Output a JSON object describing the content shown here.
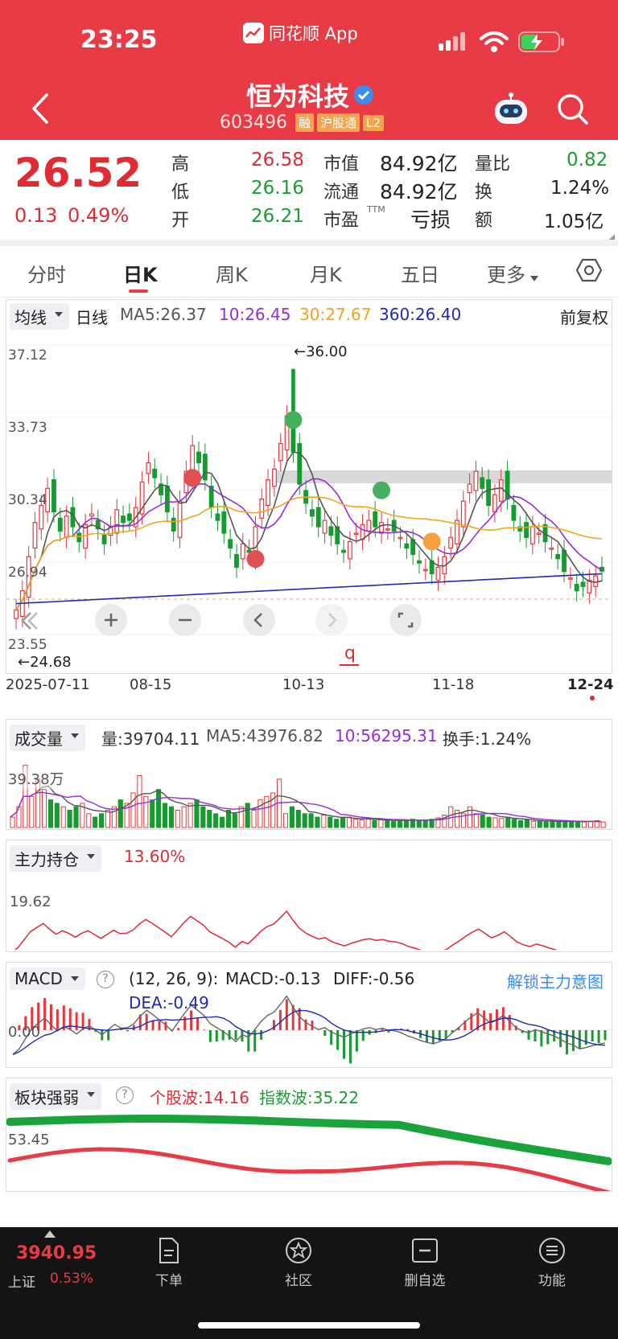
{
  "status_bar": {
    "time": "23:25",
    "app_name": "同花顺 App"
  },
  "header": {
    "title": "恒为科技",
    "code": "603496",
    "badges": [
      "融",
      "沪股通",
      "L2"
    ]
  },
  "quote": {
    "price": "26.52",
    "change": "0.13",
    "change_pct": "0.49%",
    "high_label": "高",
    "high": "26.58",
    "low_label": "低",
    "low": "26.16",
    "open_label": "开",
    "open": "26.21",
    "mktcap_label": "市值",
    "mktcap": "84.92亿",
    "float_label": "流通",
    "float": "84.92亿",
    "pe_label": "市盈",
    "pe_sup": "TTM",
    "pe": "亏损",
    "volratio_label": "量比",
    "volratio": "0.82",
    "turnover_label": "换",
    "turnover": "1.24%",
    "amount_label": "额",
    "amount": "1.05亿"
  },
  "tabs": [
    {
      "label": "分时",
      "active": false
    },
    {
      "label": "日K",
      "active": true
    },
    {
      "label": "周K",
      "active": false
    },
    {
      "label": "月K",
      "active": false
    },
    {
      "label": "五日",
      "active": false
    },
    {
      "label": "更多",
      "active": false
    }
  ],
  "kline": {
    "ma_selector": "均线",
    "period": "日线",
    "ma5": "MA5:26.37",
    "ma10": "10:26.45",
    "ma30": "30:27.67",
    "ma360": "360:26.40",
    "adjust": "前复权",
    "y_ticks": [
      "37.12",
      "33.73",
      "30.34",
      "26.94",
      "23.55"
    ],
    "x_ticks": [
      "2025-07-11",
      "08-15",
      "10-13",
      "11-18",
      "12-24"
    ],
    "high_marker": "←36.00",
    "low_marker": "←24.68",
    "marker_q": "q",
    "colors": {
      "up": "#e8373b",
      "down": "#149c2e",
      "ma5": "#555555",
      "ma10": "#9a2cd8",
      "ma30": "#f0a51c",
      "ma360": "#1f2bb0"
    }
  },
  "chart_data": {
    "type": "candlestick",
    "x": [
      "2025-07-11",
      "08-15",
      "10-13",
      "11-18",
      "12-24"
    ],
    "ylim": [
      23.55,
      37.12
    ],
    "y_ticks": [
      37.12,
      33.73,
      30.34,
      26.94,
      23.55
    ],
    "high": 36.0,
    "low": 24.68,
    "last_close": 26.52,
    "ma": {
      "ma5": 26.37,
      "ma10": 26.45,
      "ma30": 27.67,
      "ma360": 26.4
    },
    "closes": [
      24.7,
      25.6,
      27.2,
      28.8,
      29.6,
      30.4,
      29.3,
      28.4,
      29.1,
      28.6,
      27.9,
      28.7,
      29.2,
      28.5,
      27.8,
      28.6,
      29.4,
      28.8,
      28.9,
      29.5,
      30.7,
      31.6,
      30.9,
      30.1,
      29.3,
      28.4,
      29.8,
      31.2,
      32.4,
      31.6,
      30.8,
      29.5,
      28.9,
      28.3,
      27.6,
      26.7,
      27.8,
      27.4,
      28.6,
      29.9,
      30.8,
      31.3,
      32.5,
      33.8,
      32.1,
      30.6,
      29.7,
      29.1,
      28.6,
      28.9,
      28.2,
      27.8,
      27.4,
      27.9,
      28.3,
      28.7,
      28.9,
      28.6,
      28.8,
      28.5,
      28.4,
      28.1,
      27.6,
      27.3,
      26.9,
      26.6,
      26.4,
      26.7,
      27.2,
      28.1,
      28.9,
      29.8,
      30.6,
      31.2,
      30.4,
      29.6,
      30.1,
      30.8,
      29.9,
      28.9,
      28.4,
      28.1,
      28.6,
      28.3,
      27.9,
      27.6,
      27.1,
      26.5,
      26.2,
      25.6,
      25.8,
      26.1,
      26.3,
      26.52
    ],
    "volume": {
      "label": "成交量",
      "vol": "量:39704.11",
      "ma5": "MA5:43976.82",
      "ma10": "10:56295.31",
      "turnover": "换手:1.24%",
      "y_tick": "39.38万",
      "values": [
        0.15,
        0.3,
        0.9,
        0.45,
        0.7,
        0.55,
        0.4,
        0.35,
        0.3,
        0.25,
        0.3,
        0.35,
        0.2,
        0.15,
        0.2,
        0.25,
        0.3,
        0.4,
        0.35,
        0.5,
        0.75,
        0.45,
        0.4,
        0.55,
        0.35,
        0.3,
        0.25,
        0.3,
        0.35,
        0.4,
        0.3,
        0.25,
        0.2,
        0.15,
        0.25,
        0.2,
        0.3,
        0.35,
        0.25,
        0.4,
        0.45,
        0.5,
        0.7,
        0.2,
        0.3,
        0.25,
        0.2,
        0.2,
        0.15,
        0.18,
        0.15,
        0.12,
        0.14,
        0.15,
        0.12,
        0.11,
        0.12,
        0.1,
        0.12,
        0.1,
        0.09,
        0.1,
        0.11,
        0.12,
        0.1,
        0.1,
        0.12,
        0.14,
        0.18,
        0.3,
        0.25,
        0.2,
        0.3,
        0.2,
        0.18,
        0.15,
        0.14,
        0.13,
        0.15,
        0.12,
        0.1,
        0.11,
        0.09,
        0.1,
        0.08,
        0.09,
        0.08,
        0.1,
        0.09,
        0.08,
        0.08,
        0.09,
        0.1,
        0.08
      ]
    },
    "main_position": {
      "label": "主力持仓",
      "value": "13.60%",
      "y_tick": "19.62"
    },
    "macd": {
      "label": "MACD",
      "params": "(12, 26, 9):",
      "macd": "MACD:-0.13",
      "diff": "DIFF:-0.56",
      "dea": "DEA:-0.49",
      "unlock": "解锁主力意图",
      "y_tick": "0.00"
    },
    "sector": {
      "label": "板块强弱",
      "stock_wave": "个股波:14.16",
      "index_wave": "指数波:35.22",
      "y_tick": "53.45"
    }
  },
  "footer": {
    "index_value": "3940.95",
    "index_name": "上证",
    "index_change": "0.53%",
    "items": [
      "下单",
      "社区",
      "删自选",
      "功能"
    ]
  }
}
